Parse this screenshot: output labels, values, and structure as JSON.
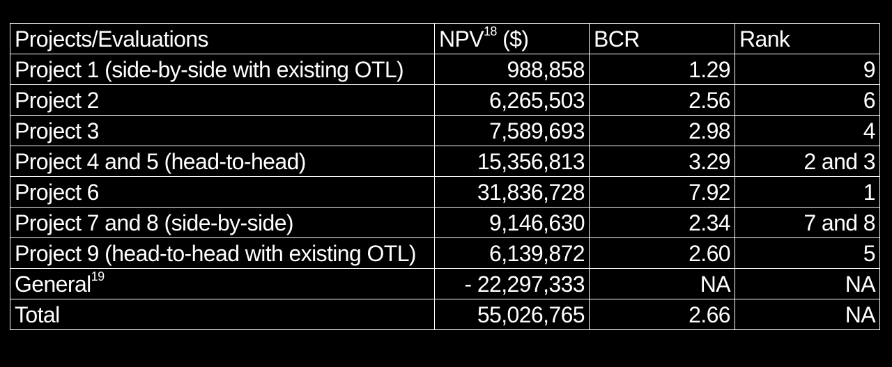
{
  "table": {
    "header": {
      "project": "Projects/Evaluations",
      "npv": "NPV",
      "npv_footnote": "18",
      "npv_unit": " ($)",
      "bcr": "BCR",
      "rank": "Rank"
    },
    "rows": [
      {
        "project": "Project 1 (side-by-side with existing OTL)",
        "project_footnote": "",
        "npv": "988,858",
        "bcr": "1.29",
        "rank": "9"
      },
      {
        "project": "Project 2",
        "project_footnote": "",
        "npv": "6,265,503",
        "bcr": "2.56",
        "rank": "6"
      },
      {
        "project": "Project 3",
        "project_footnote": "",
        "npv": "7,589,693",
        "bcr": "2.98",
        "rank": "4"
      },
      {
        "project": "Project 4 and 5 (head-to-head)",
        "project_footnote": "",
        "npv": "15,356,813",
        "bcr": "3.29",
        "rank": "2 and 3"
      },
      {
        "project": "Project 6",
        "project_footnote": "",
        "npv": "31,836,728",
        "bcr": "7.92",
        "rank": "1"
      },
      {
        "project": "Project 7 and 8 (side-by-side)",
        "project_footnote": "",
        "npv": "9,146,630",
        "bcr": "2.34",
        "rank": "7 and 8"
      },
      {
        "project": "Project 9 (head-to-head with existing OTL)",
        "project_footnote": "",
        "npv": "6,139,872",
        "bcr": "2.60",
        "rank": "5"
      },
      {
        "project": "General",
        "project_footnote": "19",
        "npv": "- 22,297,333",
        "bcr": "NA",
        "rank": "NA"
      },
      {
        "project": "Total",
        "project_footnote": "",
        "npv": "55,026,765",
        "bcr": "2.66",
        "rank": "NA"
      }
    ]
  },
  "colors": {
    "background": "#000000",
    "text": "#ffffff",
    "border": "#ffffff"
  }
}
